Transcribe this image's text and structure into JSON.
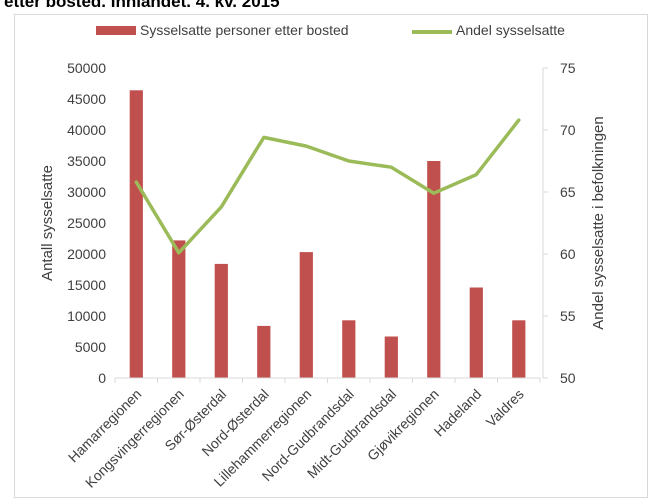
{
  "page": {
    "title": "etter bosted. Innlandet. 4. kv. 2015"
  },
  "chart_data": {
    "type": "bar",
    "categories": [
      "Hamarregionen",
      "Kongsvingerregionen",
      "Sør-Østerdal",
      "Nord-Østerdal",
      "Lillehammerregionen",
      "Nord-Gudbrandsdal",
      "Midt-Gudbrandsdal",
      "Gjøvikregionen",
      "Hadeland",
      "Valdres"
    ],
    "series": [
      {
        "name": "Sysselsatte personer etter bosted",
        "type": "bar",
        "axis": "left",
        "color": "#c0504d",
        "values": [
          46400,
          22200,
          18400,
          8400,
          20300,
          9300,
          6700,
          35000,
          14600,
          9300
        ]
      },
      {
        "name": "Andel sysselsatte",
        "type": "line",
        "axis": "right",
        "color": "#9bbb59",
        "values": [
          65.8,
          60.1,
          63.8,
          69.4,
          68.7,
          67.5,
          67.0,
          64.9,
          66.4,
          70.8
        ]
      }
    ],
    "ylabel": "Antall sysselsatte",
    "y2label": "Andel sysselsatte i befolkningen",
    "ylim": [
      0,
      50000
    ],
    "y2lim": [
      50,
      75
    ],
    "yticks": [
      "0",
      "5000",
      "10000",
      "15000",
      "20000",
      "25000",
      "30000",
      "35000",
      "40000",
      "45000",
      "50000"
    ],
    "y2ticks": [
      "50",
      "55",
      "60",
      "65",
      "70",
      "75"
    ],
    "grid": false,
    "legend": "top-center"
  }
}
